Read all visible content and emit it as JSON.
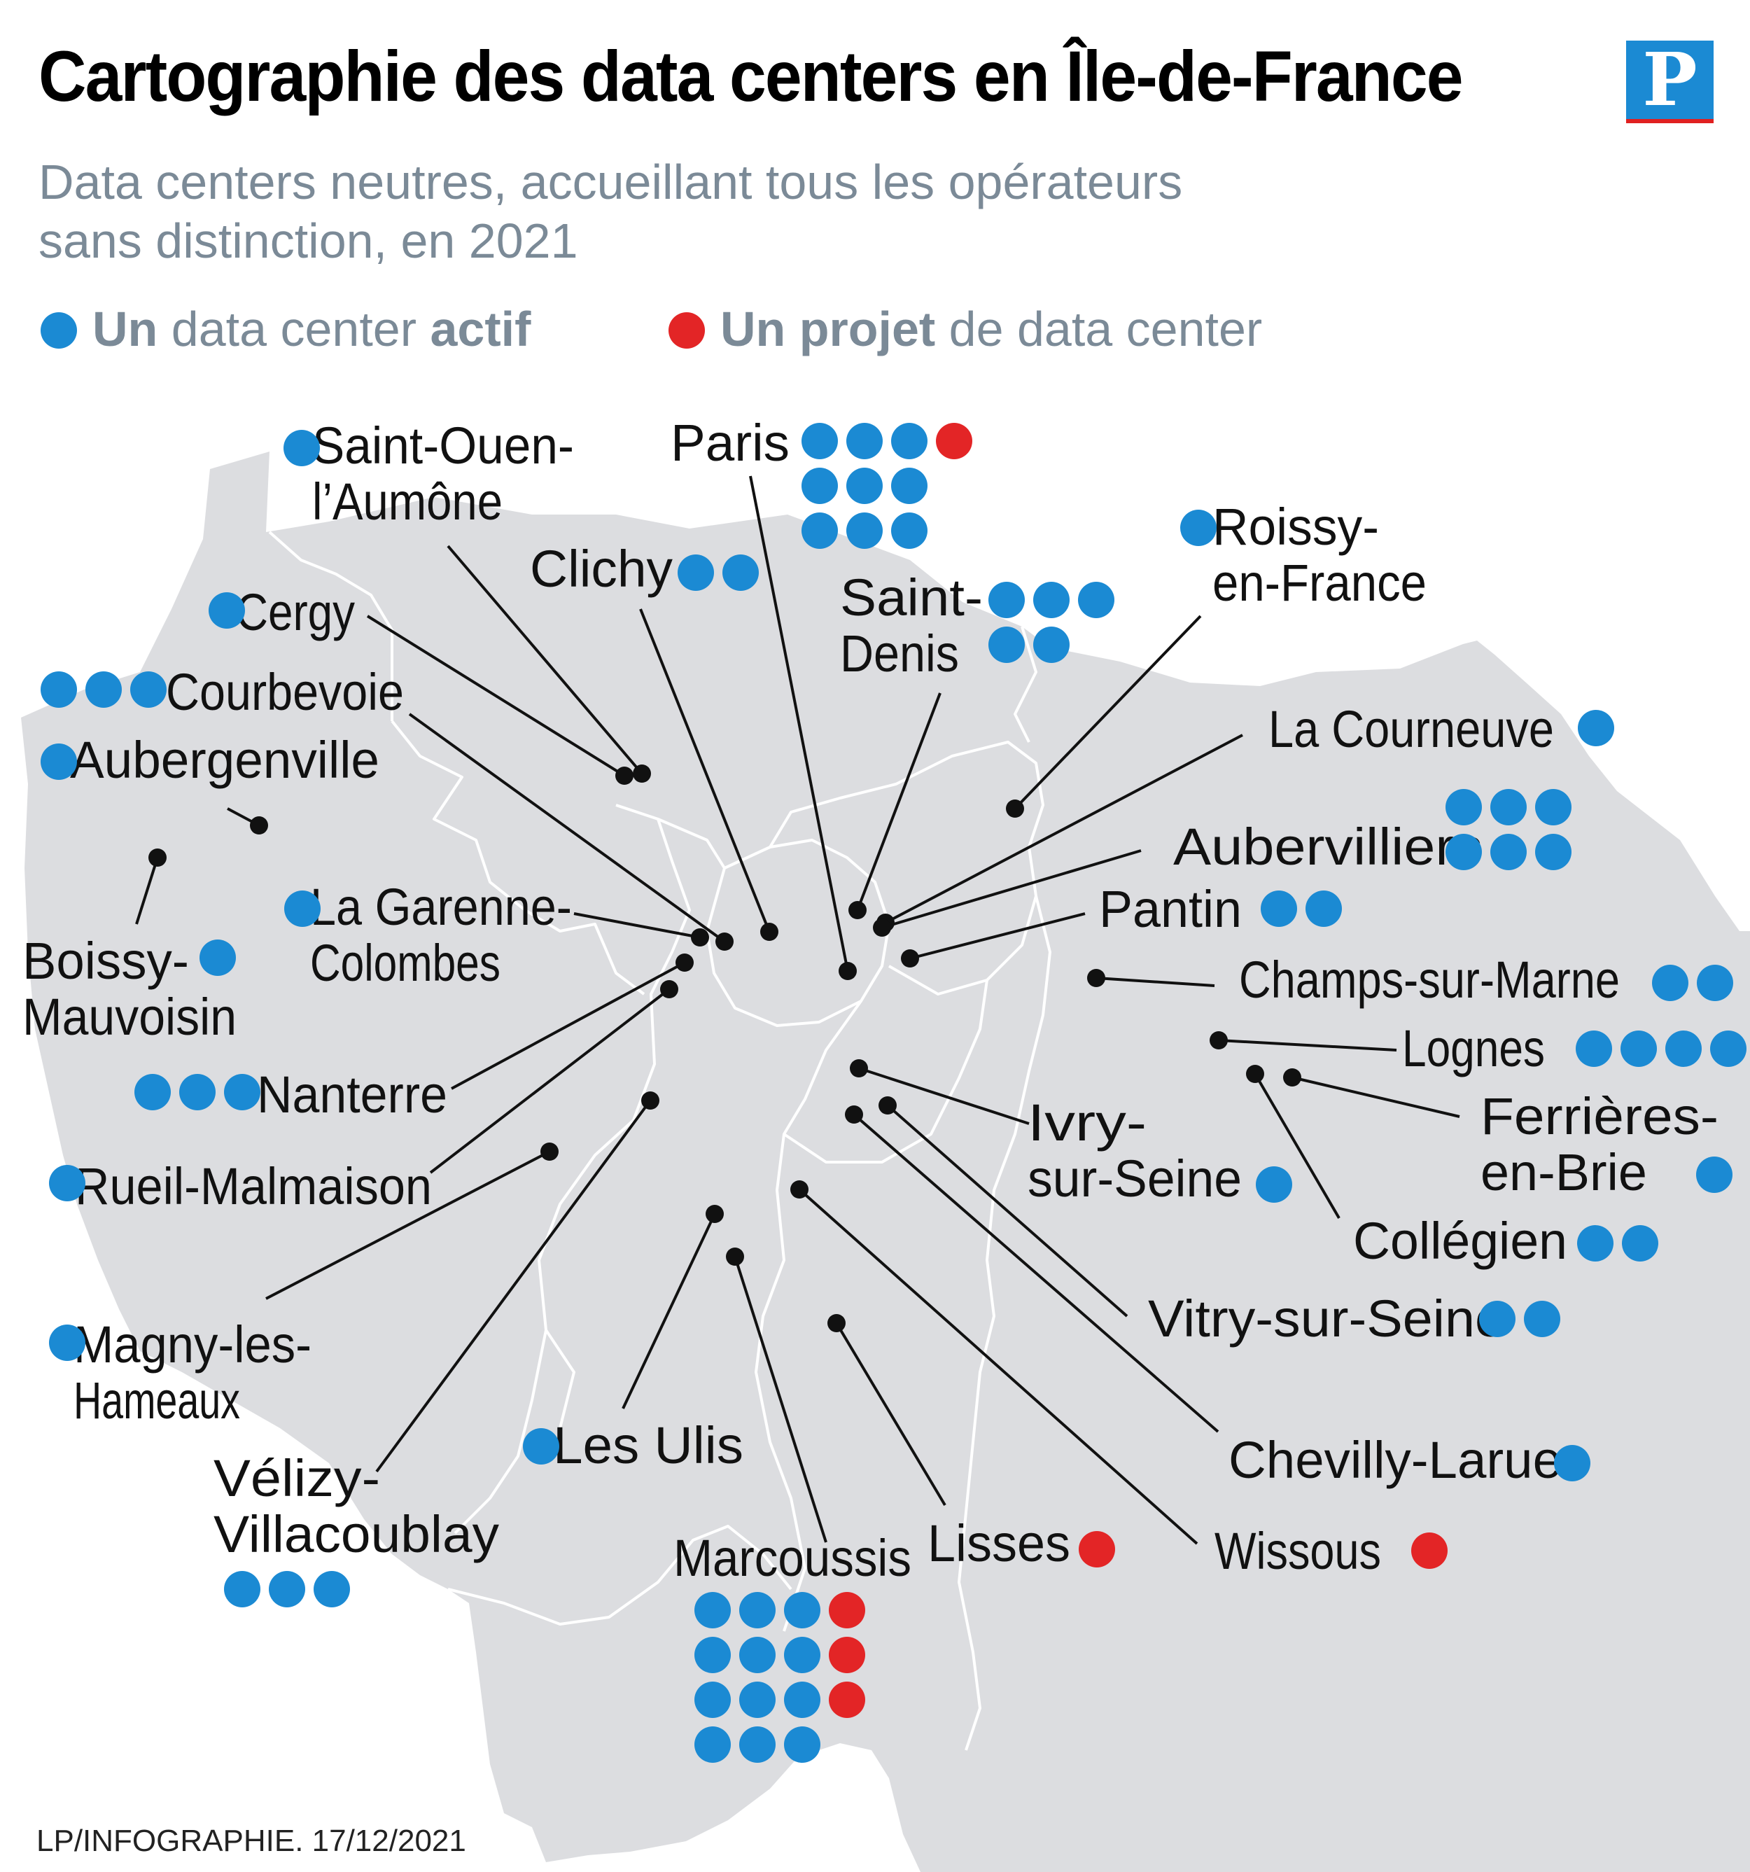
{
  "title": "Cartographie des data centers en Île-de-France",
  "subtitle_lines": [
    "Data centers neutres, accueillant tous les opérateurs",
    "sans distinction, en 2021"
  ],
  "legend": {
    "active": {
      "strong": "Un",
      "text": "data center",
      "strong2": "actif",
      "color": "#1b8ad3"
    },
    "project": {
      "strong": "Un projet",
      "text": "de data center",
      "color": "#e32526"
    }
  },
  "logo_letter": "P",
  "credit": "LP/INFOGRAPHIE.  17/12/2021",
  "colors": {
    "region_fill": "#dcdde0",
    "border_lines": "#ffffff",
    "leader_line": "#111111",
    "active": "#1b8ad3",
    "project": "#e32526"
  },
  "sites": [
    {
      "name": "Saint-Ouen-l'Aumône",
      "label_lines": [
        "Saint-Ouen-",
        "l’Aumône"
      ],
      "active": 1,
      "projects": 0
    },
    {
      "name": "Paris",
      "label_lines": [
        "Paris"
      ],
      "active": 9,
      "projects": 1
    },
    {
      "name": "Clichy",
      "label_lines": [
        "Clichy"
      ],
      "active": 2,
      "projects": 0
    },
    {
      "name": "Roissy-en-France",
      "label_lines": [
        "Roissy-",
        "en-France"
      ],
      "active": 1,
      "projects": 0
    },
    {
      "name": "Saint-Denis",
      "label_lines": [
        "Saint-",
        "Denis"
      ],
      "active": 5,
      "projects": 0
    },
    {
      "name": "Cergy",
      "label_lines": [
        "Cergy"
      ],
      "active": 1,
      "projects": 0
    },
    {
      "name": "Courbevoie",
      "label_lines": [
        "Courbevoie"
      ],
      "active": 3,
      "projects": 0
    },
    {
      "name": "Aubergenville",
      "label_lines": [
        "Aubergenville"
      ],
      "active": 1,
      "projects": 0
    },
    {
      "name": "La Courneuve",
      "label_lines": [
        "La Courneuve"
      ],
      "active": 1,
      "projects": 0
    },
    {
      "name": "Aubervilliers",
      "label_lines": [
        "Aubervilliers"
      ],
      "active": 6,
      "projects": 0
    },
    {
      "name": "La Garenne-Colombes",
      "label_lines": [
        "La Garenne-",
        "Colombes"
      ],
      "active": 1,
      "projects": 0
    },
    {
      "name": "Pantin",
      "label_lines": [
        "Pantin"
      ],
      "active": 2,
      "projects": 0
    },
    {
      "name": "Boissy-Mauvoisin",
      "label_lines": [
        "Boissy-",
        "Mauvoisin"
      ],
      "active": 1,
      "projects": 0
    },
    {
      "name": "Champs-sur-Marne",
      "label_lines": [
        "Champs-sur-Marne"
      ],
      "active": 2,
      "projects": 0
    },
    {
      "name": "Lognes",
      "label_lines": [
        "Lognes"
      ],
      "active": 4,
      "projects": 0
    },
    {
      "name": "Nanterre",
      "label_lines": [
        "Nanterre"
      ],
      "active": 3,
      "projects": 0
    },
    {
      "name": "Ferrières-en-Brie",
      "label_lines": [
        "Ferrières-",
        "en-Brie"
      ],
      "active": 1,
      "projects": 0
    },
    {
      "name": "Ivry-sur-Seine",
      "label_lines": [
        "Ivry-",
        "sur-Seine"
      ],
      "active": 1,
      "projects": 0
    },
    {
      "name": "Rueil-Malmaison",
      "label_lines": [
        "Rueil-Malmaison"
      ],
      "active": 1,
      "projects": 0
    },
    {
      "name": "Collégien",
      "label_lines": [
        "Collégien"
      ],
      "active": 2,
      "projects": 0
    },
    {
      "name": "Vitry-sur-Seine",
      "label_lines": [
        "Vitry-sur-Seine"
      ],
      "active": 2,
      "projects": 0
    },
    {
      "name": "Magny-les-Hameaux",
      "label_lines": [
        "Magny-les-",
        "Hameaux"
      ],
      "active": 1,
      "projects": 0
    },
    {
      "name": "Les Ulis",
      "label_lines": [
        "Les Ulis"
      ],
      "active": 1,
      "projects": 0
    },
    {
      "name": "Chevilly-Larue",
      "label_lines": [
        "Chevilly-Larue"
      ],
      "active": 1,
      "projects": 0
    },
    {
      "name": "Vélizy-Villacoublay",
      "label_lines": [
        "Vélizy-",
        "Villacoublay"
      ],
      "active": 3,
      "projects": 0
    },
    {
      "name": "Marcoussis",
      "label_lines": [
        "Marcoussis"
      ],
      "active": 12,
      "projects": 3
    },
    {
      "name": "Lisses",
      "label_lines": [
        "Lisses"
      ],
      "active": 0,
      "projects": 1
    },
    {
      "name": "Wissous",
      "label_lines": [
        "Wissous"
      ],
      "active": 0,
      "projects": 1
    }
  ]
}
